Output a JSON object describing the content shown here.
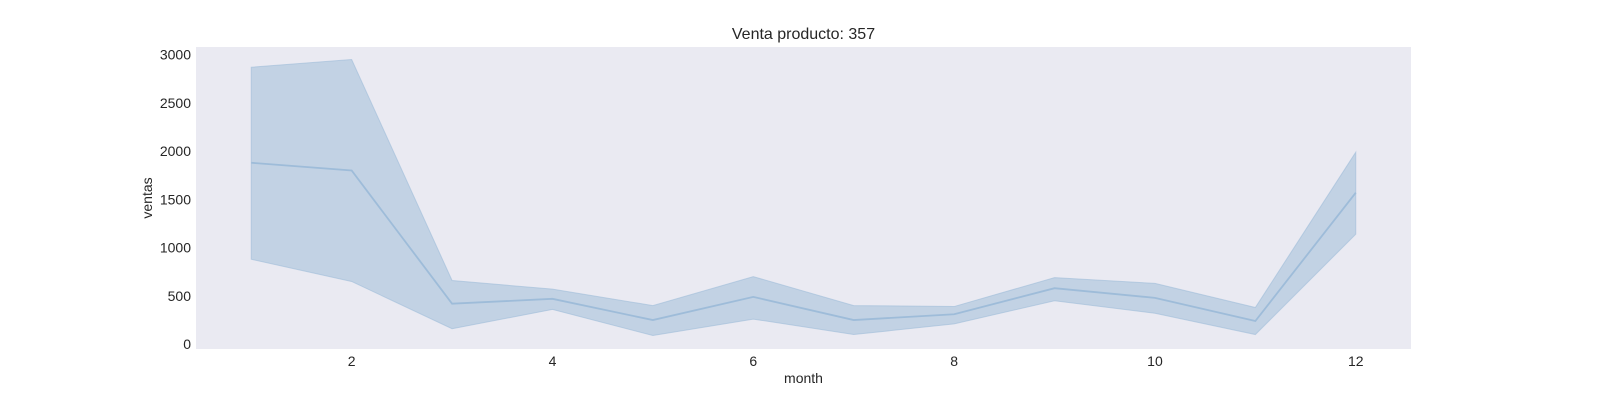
{
  "chart_data": {
    "type": "line",
    "title": "Venta producto: 357",
    "xlabel": "month",
    "ylabel": "ventas",
    "xlim": [
      0.45,
      12.55
    ],
    "ylim": [
      -50,
      3080
    ],
    "xticks": [
      2,
      4,
      6,
      8,
      10,
      12
    ],
    "yticks": [
      0,
      500,
      1000,
      1500,
      2000,
      2500,
      3000
    ],
    "grid": false,
    "legend": "none",
    "x": [
      1,
      2,
      3,
      4,
      5,
      6,
      7,
      8,
      9,
      10,
      11,
      12
    ],
    "series": [
      {
        "values": [
          1880,
          1800,
          420,
          470,
          250,
          490,
          250,
          310,
          580,
          480,
          240,
          1570
        ],
        "ci_lower": [
          880,
          650,
          160,
          360,
          90,
          260,
          100,
          210,
          450,
          320,
          100,
          1140
        ],
        "ci_upper": [
          2870,
          2950,
          660,
          570,
          400,
          700,
          400,
          390,
          690,
          630,
          380,
          1990
        ]
      }
    ],
    "colors": {
      "plot_background": "#eaeaf2",
      "line": "#9ebcd9",
      "band": "#c2d2e4"
    }
  }
}
